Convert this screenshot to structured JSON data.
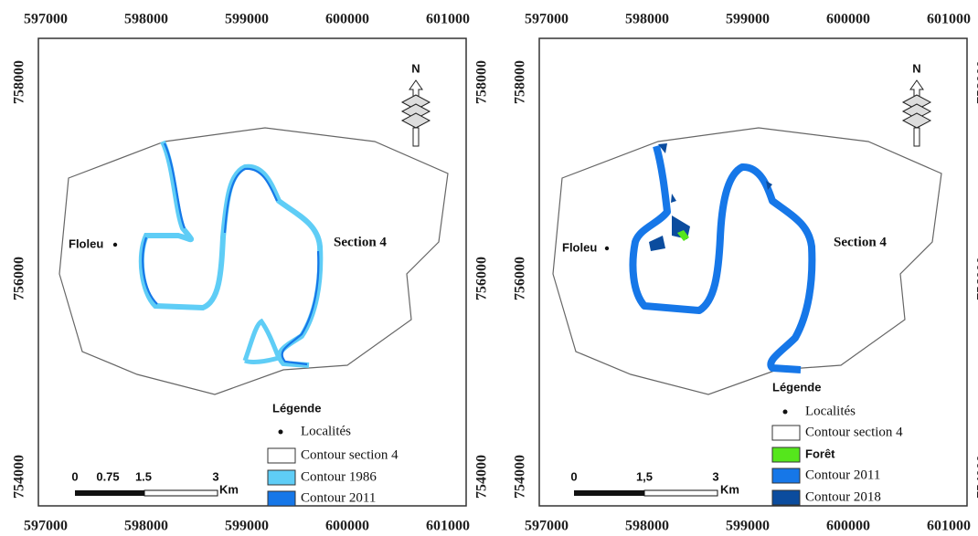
{
  "panels": [
    {
      "x_labels": [
        "597000",
        "598000",
        "599000",
        "600000",
        "601000"
      ],
      "y_labels": [
        "758000",
        "756000",
        "754000"
      ],
      "places": [
        {
          "label": "Floleu"
        },
        {
          "label": "Section 4"
        }
      ],
      "north": "N",
      "scale": {
        "labels": [
          "0",
          "0.75",
          "1.5",
          "3"
        ],
        "unit": "Km"
      },
      "legend": {
        "title": "Légende",
        "items": [
          {
            "label": "Localités",
            "symbol": "dot"
          },
          {
            "label": "Contour section 4",
            "symbol": "box",
            "color": "#ffffff"
          },
          {
            "label": "Contour 1986",
            "symbol": "box",
            "color": "#5fcdf6"
          },
          {
            "label": "Contour 2011",
            "symbol": "box",
            "color": "#1677e8"
          }
        ]
      }
    },
    {
      "x_labels": [
        "597000",
        "598000",
        "599000",
        "600000",
        "601000"
      ],
      "y_labels": [
        "758000",
        "756000",
        "754000"
      ],
      "places": [
        {
          "label": "Floleu"
        },
        {
          "label": "Section 4"
        }
      ],
      "north": "N",
      "scale": {
        "labels": [
          "0",
          "1,5",
          "3"
        ],
        "unit": "Km"
      },
      "legend": {
        "title": "Légende",
        "items": [
          {
            "label": "Localités",
            "symbol": "dot"
          },
          {
            "label": "Contour section 4",
            "symbol": "box",
            "color": "#ffffff"
          },
          {
            "label": "Forêt",
            "symbol": "box",
            "color": "#55e61c"
          },
          {
            "label": "Contour 2011",
            "symbol": "box",
            "color": "#1677e8"
          },
          {
            "label": "Contour 2018",
            "symbol": "box",
            "color": "#0b4c9e"
          }
        ]
      }
    }
  ]
}
